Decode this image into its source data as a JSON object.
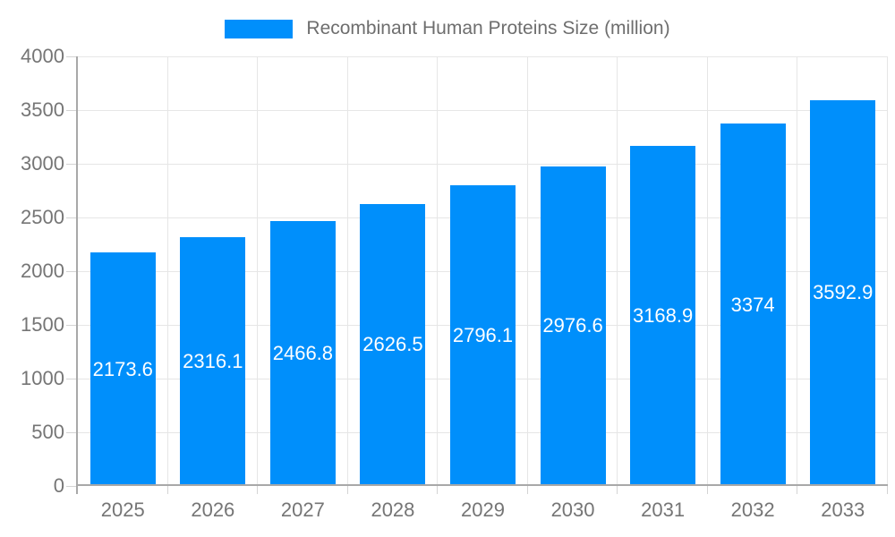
{
  "chart_data": {
    "type": "bar",
    "title": "Recombinant Human Proteins Size (million)",
    "categories": [
      "2025",
      "2026",
      "2027",
      "2028",
      "2029",
      "2030",
      "2031",
      "2032",
      "2033"
    ],
    "values": [
      2173.6,
      2316.1,
      2466.8,
      2626.5,
      2796.1,
      2976.6,
      3168.9,
      3374,
      3592.9
    ],
    "value_labels": [
      "2173.6",
      "2316.1",
      "2466.8",
      "2626.5",
      "2796.1",
      "2976.6",
      "3168.9",
      "3374",
      "3592.9"
    ],
    "xlabel": "",
    "ylabel": "",
    "ylim": [
      0,
      4000
    ],
    "yticks": [
      0,
      500,
      1000,
      1500,
      2000,
      2500,
      3000,
      3500,
      4000
    ],
    "ytick_labels": [
      "0",
      "500",
      "1000",
      "1500",
      "2000",
      "2500",
      "3000",
      "3500",
      "4000"
    ],
    "grid": true,
    "legend_position": "top",
    "colors": {
      "bar": "#008FFB",
      "grid": "#e6e6e6",
      "axis": "#a8a8a8",
      "tick": "#d4d4d4",
      "axis_label": "#757575",
      "value_label": "#ffffff",
      "legend_text": "#6e6e6e"
    }
  }
}
